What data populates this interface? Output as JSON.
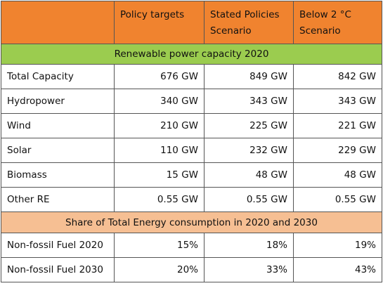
{
  "header": {
    "col1": "Policy targets",
    "col2": "Stated Policies Scenario",
    "col3": "Below 2 °C Scenario"
  },
  "section1": {
    "title": "Renewable power capacity 2020",
    "rows": [
      {
        "label": "Total Capacity",
        "v1": "676 GW",
        "v2": "849 GW",
        "v3": "842 GW"
      },
      {
        "label": "Hydropower",
        "v1": "340 GW",
        "v2": "343 GW",
        "v3": "343 GW"
      },
      {
        "label": "Wind",
        "v1": "210 GW",
        "v2": "225 GW",
        "v3": "221 GW"
      },
      {
        "label": "Solar",
        "v1": "110 GW",
        "v2": "232 GW",
        "v3": "229 GW"
      },
      {
        "label": "Biomass",
        "v1": "15 GW",
        "v2": "48 GW",
        "v3": "48 GW"
      },
      {
        "label": "Other RE",
        "v1": "0.55 GW",
        "v2": "0.55 GW",
        "v3": "0.55 GW"
      }
    ]
  },
  "section2": {
    "title": "Share of Total Energy consumption in 2020 and 2030",
    "rows": [
      {
        "label": "Non-fossil Fuel 2020",
        "v1": "15%",
        "v2": "18%",
        "v3": "19%"
      },
      {
        "label": "Non-fossil Fuel 2030",
        "v1": "20%",
        "v2": "33%",
        "v3": "43%"
      }
    ]
  },
  "colors": {
    "header_bg": "#f0832f",
    "section1_bg": "#9bcc4f",
    "section2_bg": "#f6bf93",
    "border": "#555555"
  }
}
